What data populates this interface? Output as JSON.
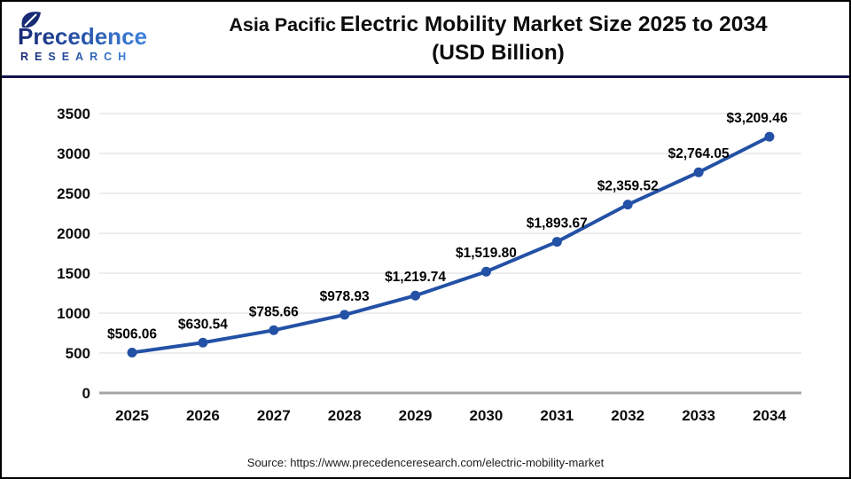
{
  "header": {
    "logo_name": "Precedence",
    "logo_subtitle": "RESEARCH",
    "title_part1": "Asia Pacific",
    "title_part2": "Electric Mobility Market Size 2025 to 2034",
    "title_line2": "(USD Billion)"
  },
  "chart_data": {
    "type": "line",
    "title": "Asia Pacific Electric Mobility Market Size 2025 to 2034 (USD Billion)",
    "categories": [
      "2025",
      "2026",
      "2027",
      "2028",
      "2029",
      "2030",
      "2031",
      "2032",
      "2033",
      "2034"
    ],
    "series": [
      {
        "name": "Asia Pacific Electric Mobility Market Size (USD Billion)",
        "values": [
          506.06,
          630.54,
          785.66,
          978.93,
          1219.74,
          1519.8,
          1893.67,
          2359.52,
          2764.05,
          3209.46
        ]
      }
    ],
    "point_labels": [
      "$506.06",
      "$630.54",
      "$785.66",
      "$978.93",
      "$1,219.74",
      "$1,519.80",
      "$1,893.67",
      "$2,359.52",
      "$2,764.05",
      "$3,209.46"
    ],
    "y_ticks": [
      0,
      500,
      1000,
      1500,
      2000,
      2500,
      3000,
      3500
    ],
    "ylim": [
      0,
      3500
    ],
    "xlabel": "",
    "ylabel": "",
    "grid": true,
    "legend": false,
    "line_color": "#2351a5"
  },
  "footer": {
    "source": "Source: https://www.precedenceresearch.com/electric-mobility-market"
  },
  "colors": {
    "accent_blue": "#2351a5",
    "divider_navy": "#141452",
    "grid": "#e7e7e7",
    "axis": "#a6a6a6",
    "logo_dark": "#172a75",
    "logo_light": "#3f83de",
    "text": "#0d0d0d"
  }
}
